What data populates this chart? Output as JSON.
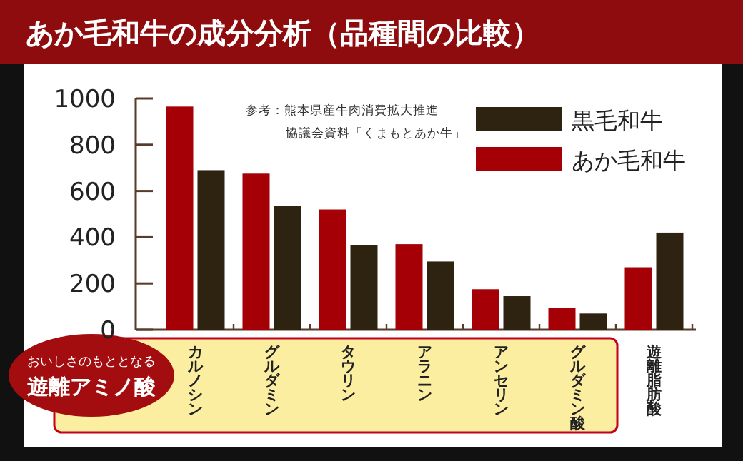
{
  "chart_data": {
    "type": "bar",
    "title": "あか毛和牛の成分分析（品種間の比較）",
    "categories": [
      "カルノシン",
      "グルダミン",
      "タウリン",
      "アラニン",
      "アンセリン",
      "グルダミン酸",
      "遊離脂肪酸"
    ],
    "series": [
      {
        "name": "あか毛和牛",
        "color": "#a50005",
        "values": [
          965,
          675,
          520,
          370,
          175,
          95,
          270
        ]
      },
      {
        "name": "黒毛和牛",
        "color": "#2e2310",
        "values": [
          690,
          535,
          365,
          295,
          145,
          70,
          420
        ]
      }
    ],
    "ylim": [
      0,
      1000
    ],
    "yticks": [
      0,
      200,
      400,
      600,
      800,
      1000
    ],
    "legend": "top right",
    "annotations": [
      "参考：熊本県産牛肉消費拡大推進",
      "協議会資料「くまもとあか牛」",
      "おいしさのもととなる",
      "遊離アミノ酸"
    ]
  }
}
